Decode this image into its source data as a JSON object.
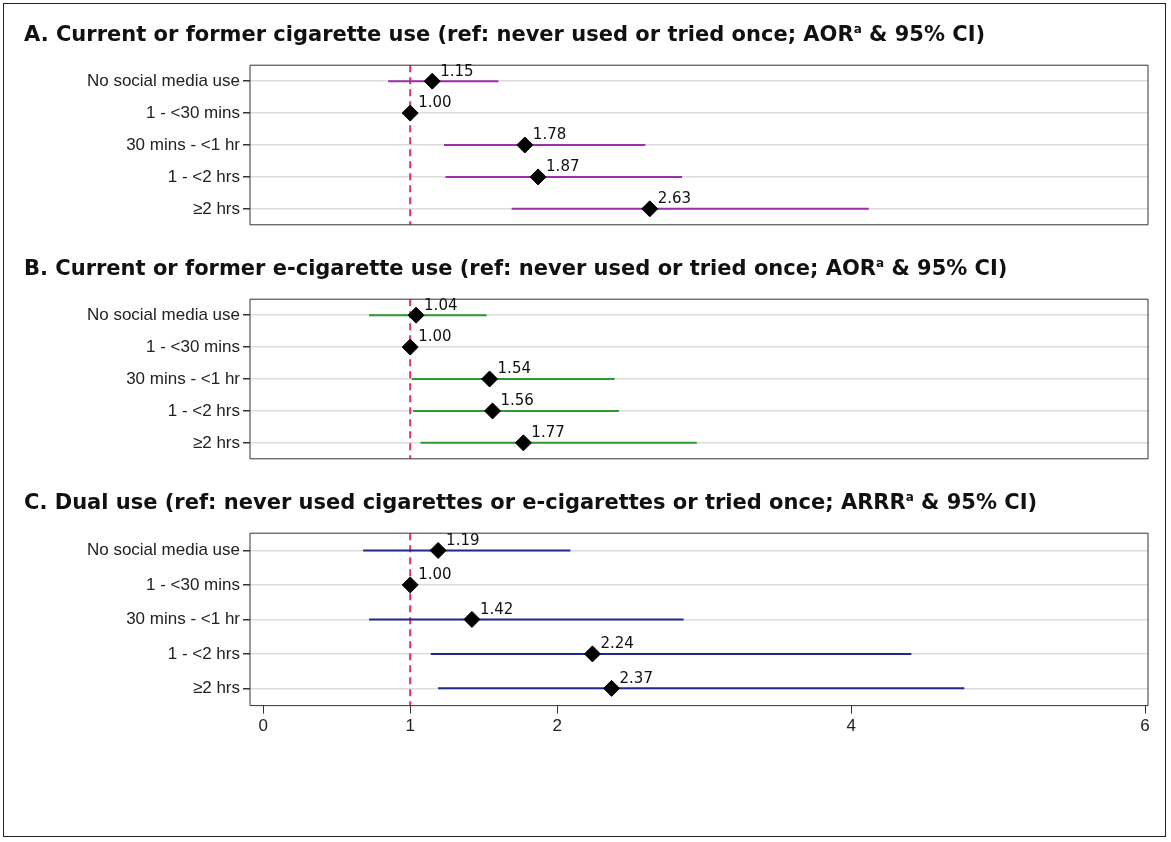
{
  "chart_data": [
    {
      "type": "scatter",
      "orientation": "horizontal",
      "title": "A. Current or former cigarette use (ref: never used or tried once; AOR$^{a}$ & 95% CI)",
      "categories": [
        "No social media use",
        "1 - <30 mins",
        "30 mins - <1 hr",
        "1 - <2 hrs",
        "≥2 hrs"
      ],
      "values": [
        1.15,
        1.0,
        1.78,
        1.87,
        2.63
      ],
      "value_labels": [
        "1.15",
        "1.00",
        "1.78",
        "1.87",
        "2.63"
      ],
      "errors": [
        [
          0.85,
          1.6
        ],
        null,
        [
          1.23,
          2.6
        ],
        [
          1.24,
          2.85
        ],
        [
          1.69,
          4.12
        ]
      ],
      "color": "#9b30a8",
      "colors": [
        "#000000",
        "#000000",
        "#000000",
        "#000000",
        "#000000"
      ],
      "marker": "diamond",
      "xlim": [
        -0.09,
        6.02
      ],
      "xticks": [
        0,
        1,
        2,
        4,
        6
      ],
      "tick_labels": "y",
      "grid": "y",
      "ref_lines": [
        {
          "axis": "x",
          "value": 1,
          "color": "#e0306a",
          "line_style": "dashed"
        }
      ]
    },
    {
      "type": "scatter",
      "orientation": "horizontal",
      "title": "B. Current or former e-cigarette use (ref: never used or tried once; AOR$^{a}$ & 95% CI)",
      "categories": [
        "No social media use",
        "1 - <30 mins",
        "30 mins - <1 hr",
        "1 - <2 hrs",
        "≥2 hrs"
      ],
      "values": [
        1.04,
        1.0,
        1.54,
        1.56,
        1.77
      ],
      "value_labels": [
        "1.04",
        "1.00",
        "1.54",
        "1.56",
        "1.77"
      ],
      "errors": [
        [
          0.72,
          1.52
        ],
        null,
        [
          1.01,
          2.39
        ],
        [
          1.02,
          2.42
        ],
        [
          1.07,
          2.95
        ]
      ],
      "color": "#2e9a2e",
      "colors": [
        "#000000",
        "#000000",
        "#000000",
        "#000000",
        "#000000"
      ],
      "marker": "diamond",
      "xlim": [
        -0.09,
        6.02
      ],
      "xticks": [
        0,
        1,
        2,
        4,
        6
      ],
      "tick_labels": "y",
      "grid": "y",
      "ref_lines": [
        {
          "axis": "x",
          "value": 1,
          "color": "#e0306a",
          "line_style": "dashed"
        }
      ]
    },
    {
      "type": "scatter",
      "orientation": "horizontal",
      "title": "C. Dual use (ref: never used cigarettes or e-cigarettes or tried once; ARRR$^{a}$ & 95% CI)",
      "categories": [
        "No social media use",
        "1 - <30 mins",
        "30 mins - <1 hr",
        "1 - <2 hrs",
        "≥2 hrs"
      ],
      "values": [
        1.19,
        1.0,
        1.42,
        2.24,
        2.37
      ],
      "value_labels": [
        "1.19",
        "1.00",
        "1.42",
        "2.24",
        "2.37"
      ],
      "errors": [
        [
          0.68,
          2.09
        ],
        null,
        [
          0.72,
          2.86
        ],
        [
          1.14,
          4.41
        ],
        [
          1.19,
          4.77
        ]
      ],
      "color": "#1f2a8a",
      "colors": [
        "#000000",
        "#000000",
        "#000000",
        "#000000",
        "#000000"
      ],
      "marker": "diamond",
      "xlim": [
        -0.09,
        6.02
      ],
      "xticks": [
        0,
        1,
        2,
        4,
        6
      ],
      "grid": "y",
      "ref_lines": [
        {
          "axis": "x",
          "value": 1,
          "color": "#e0306a",
          "line_style": "dashed"
        }
      ]
    }
  ]
}
